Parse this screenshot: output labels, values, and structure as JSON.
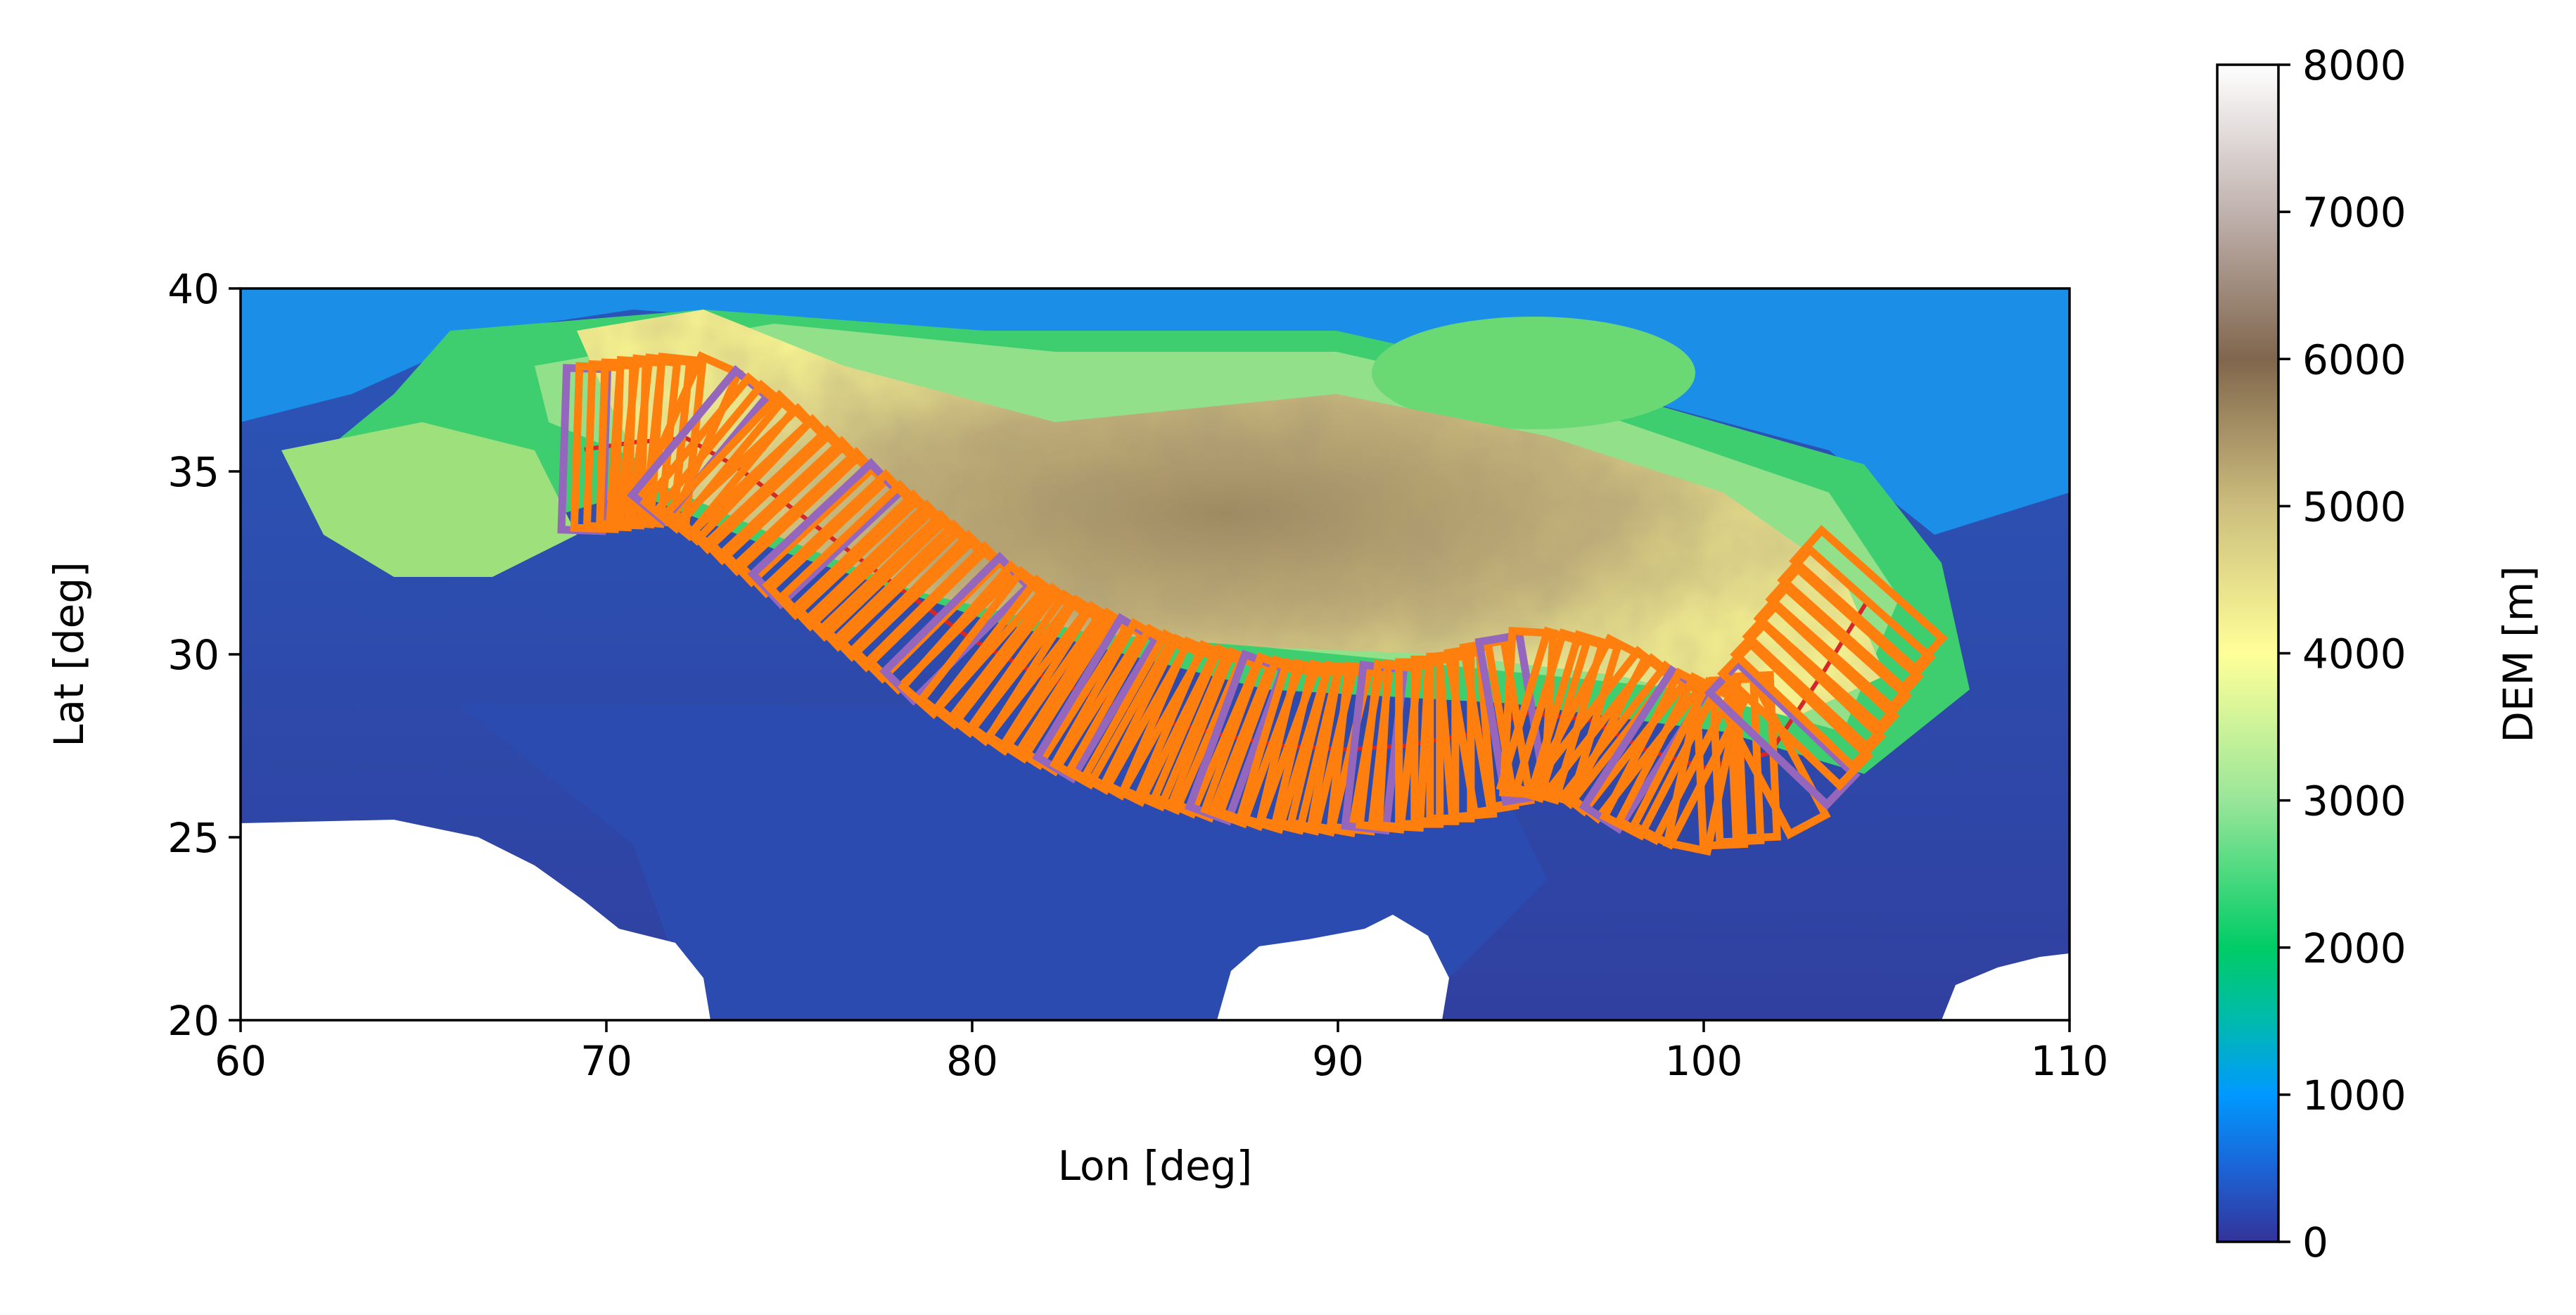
{
  "chart_data": [
    {
      "type": "heatmap",
      "xlabel": "Lon [deg]",
      "ylabel": "Lat [deg]",
      "xlim": [
        60,
        110
      ],
      "ylim": [
        20,
        40
      ],
      "xticks": [
        "60",
        "70",
        "80",
        "90",
        "100",
        "110"
      ],
      "yticks": [
        "20",
        "25",
        "30",
        "35",
        "40"
      ],
      "grid": false,
      "colormap": "terrain",
      "frame_colors": {
        "primary": "#ff7f0e",
        "secondary": "#9467bd",
        "track": "#d62728"
      },
      "colorbar": {
        "label": "DEM [m]",
        "range": [
          0,
          8000
        ],
        "ticks": [
          "0",
          "1000",
          "2000",
          "3000",
          "4000",
          "5000",
          "6000",
          "7000",
          "8000"
        ]
      },
      "frame_track_center": [
        [
          69.4,
          35.6
        ],
        [
          70.8,
          35.8
        ],
        [
          72.2,
          35.9
        ],
        [
          73.6,
          35.1
        ],
        [
          75.2,
          33.9
        ],
        [
          76.8,
          32.7
        ],
        [
          78.3,
          31.6
        ],
        [
          80.0,
          30.4
        ],
        [
          81.7,
          29.5
        ],
        [
          83.4,
          28.8
        ],
        [
          85.1,
          28.2
        ],
        [
          86.8,
          27.8
        ],
        [
          88.5,
          27.5
        ],
        [
          90.2,
          27.4
        ],
        [
          91.8,
          27.5
        ],
        [
          93.5,
          27.8
        ],
        [
          95.2,
          28.4
        ],
        [
          96.9,
          28.2
        ],
        [
          98.4,
          27.4
        ],
        [
          100.0,
          26.9
        ],
        [
          101.8,
          27.3
        ],
        [
          103.2,
          29.4
        ],
        [
          104.5,
          31.5
        ]
      ]
    }
  ]
}
